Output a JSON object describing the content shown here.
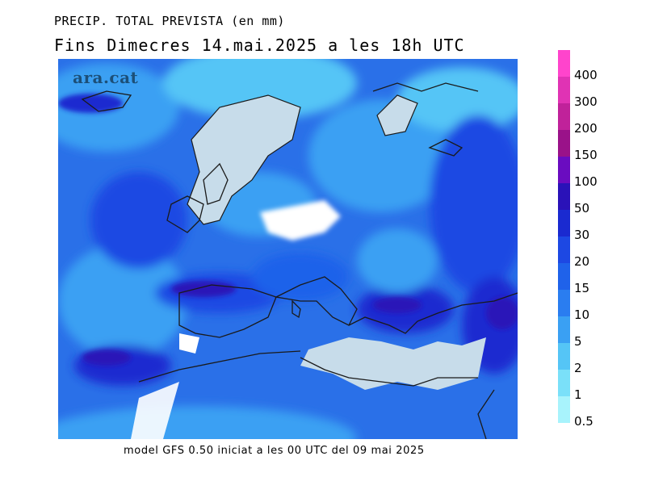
{
  "header": {
    "line1": "PRECIP. TOTAL PREVISTA (en mm)",
    "line2": "Fins Dimecres 14.mai.2025 a les 18h UTC"
  },
  "logo": "ara.cat",
  "footer": "model GFS 0.50 iniciat a les 00 UTC del 09 mai 2025",
  "legend": {
    "items": [
      {
        "label": "400",
        "color": "#ff44cc"
      },
      {
        "label": "300",
        "color": "#e033b4"
      },
      {
        "label": "200",
        "color": "#c0229a"
      },
      {
        "label": "150",
        "color": "#9a1289"
      },
      {
        "label": "100",
        "color": "#6a0cc0"
      },
      {
        "label": "50",
        "color": "#2a12b8"
      },
      {
        "label": "30",
        "color": "#1a2ad0"
      },
      {
        "label": "20",
        "color": "#1d48e3"
      },
      {
        "label": "15",
        "color": "#1f62ea"
      },
      {
        "label": "10",
        "color": "#2a7df0"
      },
      {
        "label": "5",
        "color": "#3aa0f3"
      },
      {
        "label": "2",
        "color": "#55c5f6"
      },
      {
        "label": "1",
        "color": "#7ae0f9"
      },
      {
        "label": "0.5",
        "color": "#a8f3fc"
      }
    ]
  }
}
